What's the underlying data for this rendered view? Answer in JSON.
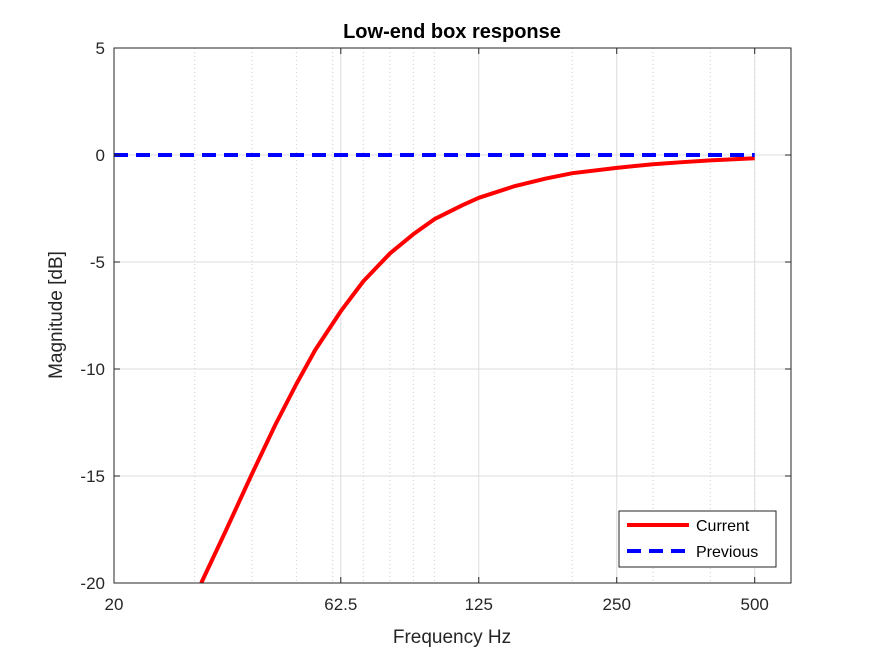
{
  "chart_data": {
    "type": "line",
    "title": "Low-end box response",
    "xlabel": "Frequency Hz",
    "ylabel": "Magnitude [dB]",
    "xscale": "log",
    "xlim": [
      20,
      600
    ],
    "ylim": [
      -20,
      5
    ],
    "xticks": [
      20,
      62.5,
      125,
      250,
      500
    ],
    "xtick_labels": [
      "20",
      "62.5",
      "125",
      "250",
      "500"
    ],
    "yticks": [
      -20,
      -15,
      -10,
      -5,
      0,
      5
    ],
    "ytick_labels": [
      "-20",
      "-15",
      "-10",
      "-5",
      "0",
      "5"
    ],
    "grid": true,
    "legend_position": "bottom-right",
    "series": [
      {
        "name": "Current",
        "color": "#ff0000",
        "style": "solid",
        "x": [
          31,
          35,
          40,
          45,
          50,
          55,
          62.5,
          70,
          80,
          90,
          100,
          115,
          125,
          150,
          175,
          200,
          250,
          300,
          350,
          400,
          450,
          500
        ],
        "y": [
          -20.0,
          -17.6,
          -14.9,
          -12.6,
          -10.7,
          -9.1,
          -7.3,
          -5.9,
          -4.6,
          -3.7,
          -3.0,
          -2.35,
          -2.0,
          -1.45,
          -1.1,
          -0.85,
          -0.6,
          -0.43,
          -0.33,
          -0.25,
          -0.2,
          -0.15
        ]
      },
      {
        "name": "Previous",
        "color": "#0000ff",
        "style": "dashed",
        "x": [
          20,
          500
        ],
        "y": [
          0,
          0
        ]
      }
    ]
  }
}
